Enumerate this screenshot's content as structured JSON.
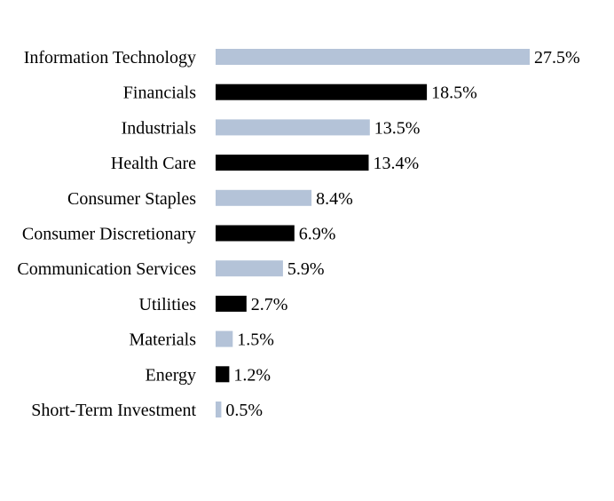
{
  "chart_data": {
    "type": "bar",
    "orientation": "horizontal",
    "categories": [
      "Information Technology",
      "Financials",
      "Industrials",
      "Health Care",
      "Consumer Staples",
      "Consumer Discretionary",
      "Communication Services",
      "Utilities",
      "Materials",
      "Energy",
      "Short-Term Investment"
    ],
    "values": [
      27.5,
      18.5,
      13.5,
      13.4,
      8.4,
      6.9,
      5.9,
      2.7,
      1.5,
      1.2,
      0.5
    ],
    "value_labels": [
      "27.5%",
      "18.5%",
      "13.5%",
      "13.4%",
      "8.4%",
      "6.9%",
      "5.9%",
      "2.7%",
      "1.5%",
      "1.2%",
      "0.5%"
    ],
    "colors": [
      "#b4c3d8",
      "#000000"
    ],
    "title": "",
    "xlabel": "",
    "ylabel": "",
    "xlim": [
      0,
      27.5
    ],
    "grid": false,
    "legend": "none"
  }
}
